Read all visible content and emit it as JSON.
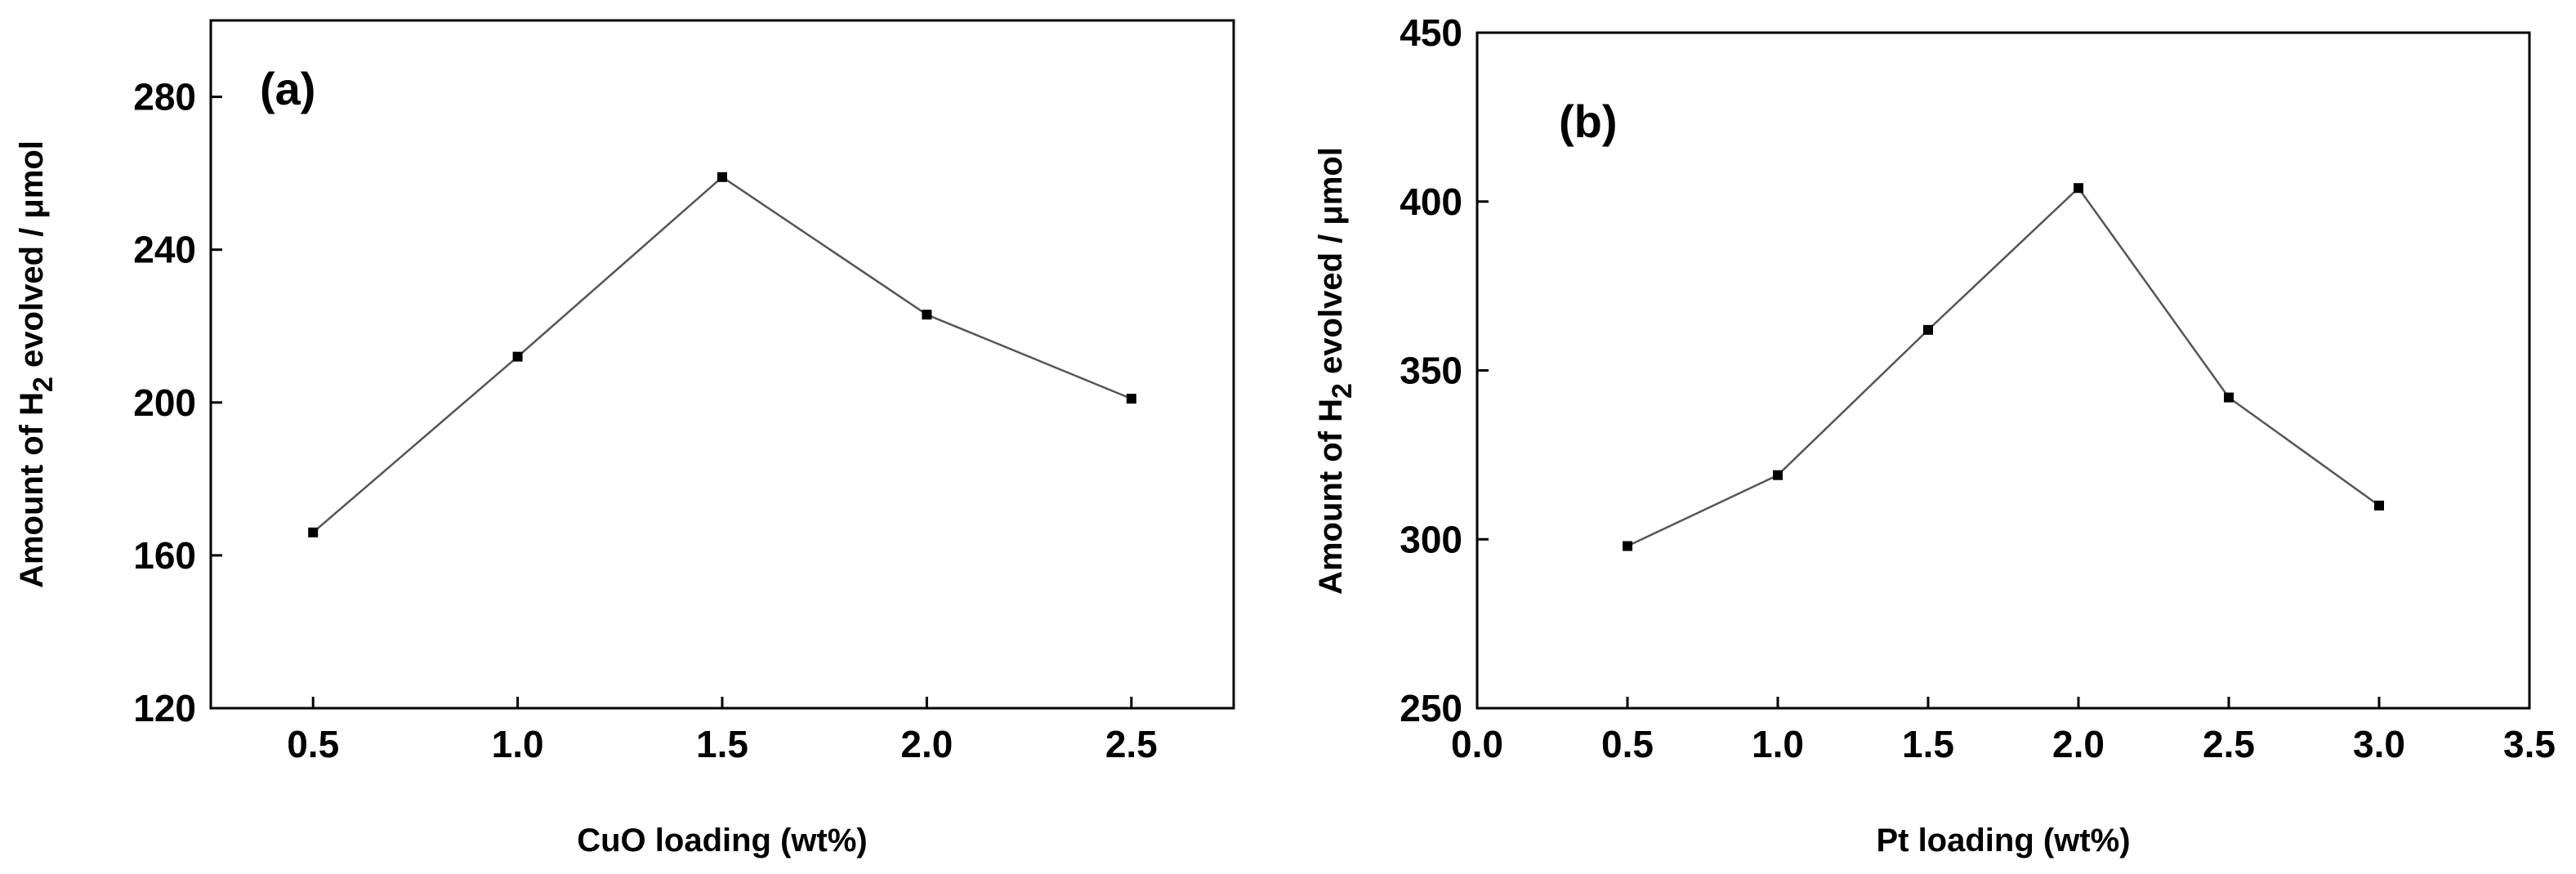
{
  "chart_data": [
    {
      "type": "line",
      "panel_label": "(a)",
      "title": "",
      "xlabel": "CuO  loading (wt%)",
      "ylabel_prefix": "Amount of H",
      "ylabel_subscript": "2",
      "ylabel_suffix": " evolved / μmol",
      "xlim": [
        0.25,
        2.75
      ],
      "ylim": [
        120,
        300
      ],
      "xticks": [
        0.5,
        1.0,
        1.5,
        2.0,
        2.5
      ],
      "xtick_labels": [
        "0.5",
        "1.0",
        "1.5",
        "2.0",
        "2.5"
      ],
      "yticks": [
        120,
        160,
        200,
        240,
        280
      ],
      "ytick_labels": [
        "120",
        "160",
        "200",
        "240",
        "280"
      ],
      "grid": false,
      "series": [
        {
          "name": "CuO",
          "x": [
            0.5,
            1.0,
            1.5,
            2.0,
            2.5
          ],
          "values": [
            166,
            212,
            259,
            223,
            201
          ],
          "color": "#555555",
          "marker_color": "#000000"
        }
      ]
    },
    {
      "type": "line",
      "panel_label": "(b)",
      "title": "",
      "xlabel": "Pt  loading (wt%)",
      "ylabel_prefix": "Amount of H",
      "ylabel_subscript": "2",
      "ylabel_suffix": " evolved / μmol",
      "xlim": [
        0.0,
        3.5
      ],
      "ylim": [
        250,
        450
      ],
      "xticks": [
        0.0,
        0.5,
        1.0,
        1.5,
        2.0,
        2.5,
        3.0,
        3.5
      ],
      "xtick_labels": [
        "0.0",
        "0.5",
        "1.0",
        "1.5",
        "2.0",
        "2.5",
        "3.0",
        "3.5"
      ],
      "yticks": [
        250,
        300,
        350,
        400,
        450
      ],
      "ytick_labels": [
        "250",
        "300",
        "350",
        "400",
        "450"
      ],
      "grid": false,
      "series": [
        {
          "name": "Pt",
          "x": [
            0.5,
            1.0,
            1.5,
            2.0,
            2.5,
            3.0
          ],
          "values": [
            298,
            319,
            362,
            404,
            342,
            310
          ],
          "color": "#555555",
          "marker_color": "#000000"
        }
      ]
    }
  ]
}
